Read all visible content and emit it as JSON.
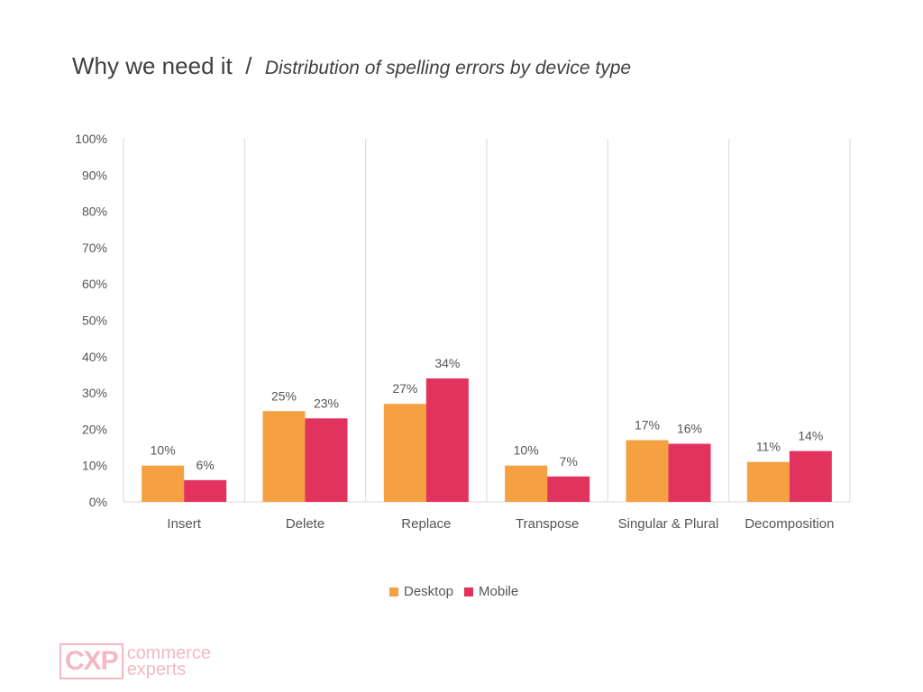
{
  "header": {
    "title": "Why we need it",
    "separator": "/",
    "subtitle": "Distribution of spelling errors by device type"
  },
  "chart_data": {
    "type": "bar",
    "categories": [
      "Insert",
      "Delete",
      "Replace",
      "Transpose",
      "Singular & Plural",
      "Decomposition"
    ],
    "series": [
      {
        "name": "Desktop",
        "color": "#F5A142",
        "values": [
          10,
          25,
          27,
          10,
          17,
          11
        ]
      },
      {
        "name": "Mobile",
        "color": "#E2325E",
        "values": [
          6,
          23,
          34,
          7,
          16,
          14
        ]
      }
    ],
    "data_labels": [
      [
        "10%",
        "25%",
        "27%",
        "10%",
        "17%",
        "11%"
      ],
      [
        "6%",
        "23%",
        "34%",
        "7%",
        "16%",
        "14%"
      ]
    ],
    "ylim": [
      0,
      100
    ],
    "yticks": [
      "0%",
      "10%",
      "20%",
      "30%",
      "40%",
      "50%",
      "60%",
      "70%",
      "80%",
      "90%",
      "100%"
    ],
    "grid": "vertical-separators",
    "legend_position": "bottom"
  },
  "legend": {
    "items": [
      {
        "label": "Desktop",
        "color": "#F5A142"
      },
      {
        "label": "Mobile",
        "color": "#E2325E"
      }
    ]
  },
  "logo": {
    "mark": "CXP",
    "line1": "commerce",
    "line2": "experts"
  }
}
